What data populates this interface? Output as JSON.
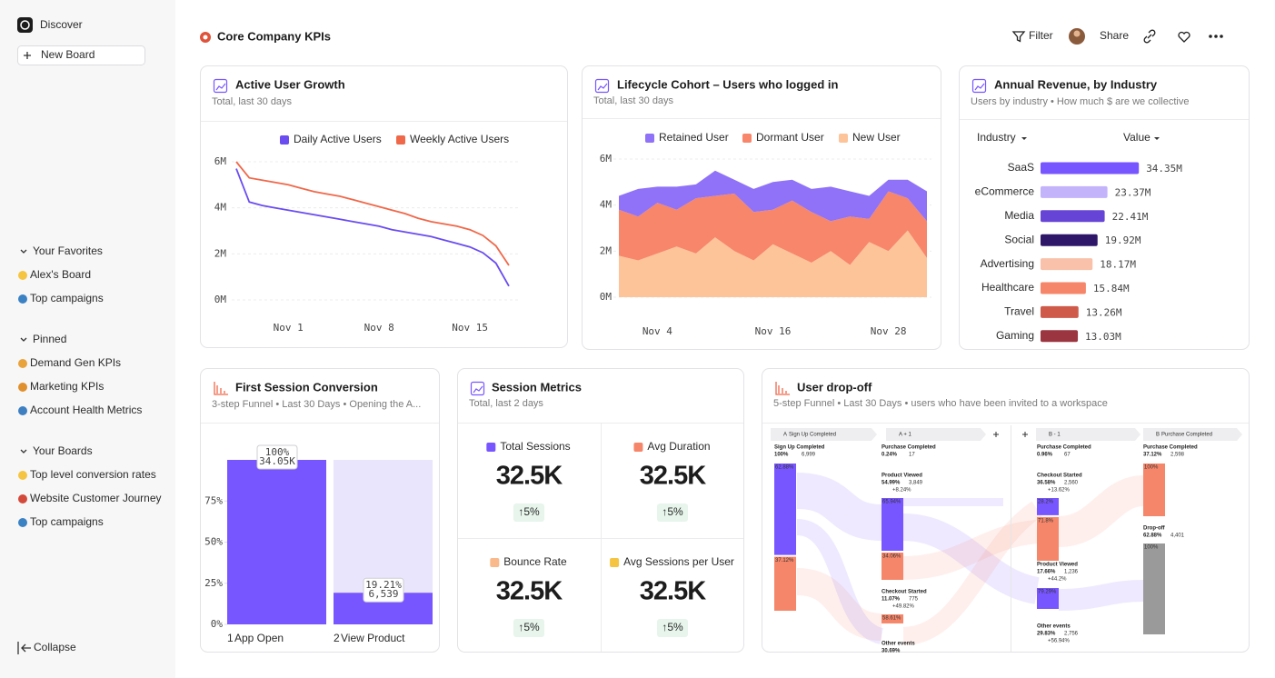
{
  "sidebar": {
    "discover": "Discover",
    "new_board": "New Board",
    "sections": [
      {
        "title": "Your Favorites",
        "items": [
          "Alex's Board",
          "Top campaigns"
        ]
      },
      {
        "title": "Pinned",
        "items": [
          "Demand Gen KPIs",
          "Marketing KPIs",
          "Account Health Metrics"
        ]
      },
      {
        "title": "Your Boards",
        "items": [
          "Top level conversion rates",
          "Website Customer Journey",
          "Top campaigns"
        ]
      }
    ],
    "collapse": "Collapse"
  },
  "header": {
    "title": "Core Company KPIs",
    "filter": "Filter",
    "share": "Share"
  },
  "chart_data": [
    {
      "type": "line",
      "title": "Active User Growth",
      "subtitle": "Total, last 30 days",
      "categories": [
        null,
        null,
        null,
        null,
        "Nov 1",
        null,
        null,
        null,
        null,
        null,
        null,
        "Nov 8",
        null,
        null,
        null,
        null,
        null,
        null,
        "Nov 15",
        null,
        null,
        null
      ],
      "series": [
        {
          "name": "Daily Active Users",
          "color": "#6a4cf0",
          "values": [
            5.7,
            4.25,
            4.1,
            4.0,
            3.9,
            3.8,
            3.7,
            3.6,
            3.5,
            3.4,
            3.3,
            3.2,
            3.05,
            2.95,
            2.85,
            2.75,
            2.6,
            2.45,
            2.3,
            2.05,
            1.6,
            0.6
          ]
        },
        {
          "name": "Weekly Active Users",
          "color": "#f0684a",
          "values": [
            6.0,
            5.3,
            5.2,
            5.1,
            5.0,
            4.85,
            4.7,
            4.6,
            4.5,
            4.35,
            4.2,
            4.05,
            3.9,
            3.75,
            3.55,
            3.4,
            3.3,
            3.2,
            3.05,
            2.8,
            2.35,
            1.5
          ]
        }
      ],
      "ylim": [
        0,
        6
      ],
      "yticks": [
        {
          "value": 0,
          "label": "0M"
        },
        {
          "value": 2,
          "label": "2M"
        },
        {
          "value": 4,
          "label": "4M"
        },
        {
          "value": 6,
          "label": "6M"
        }
      ],
      "grid": true
    },
    {
      "type": "area",
      "title": "Lifecycle Cohort – Users who logged in",
      "subtitle": "Total, last 30 days",
      "categories": [
        null,
        null,
        "Nov 4",
        null,
        null,
        null,
        null,
        null,
        "Nov 16",
        null,
        null,
        null,
        null,
        null,
        "Nov 28",
        null,
        null
      ],
      "series": [
        {
          "name": "Retained User",
          "color": "#8f72f7",
          "values": [
            0.6,
            1.2,
            0.7,
            1.0,
            0.6,
            1.1,
            0.6,
            1.0,
            1.2,
            0.9,
            1.0,
            1.5,
            1.1,
            1.0,
            0.5,
            0.8,
            1.3
          ]
        },
        {
          "name": "Dormant User",
          "color": "#f7866a",
          "values": [
            2.0,
            1.9,
            2.2,
            1.6,
            2.4,
            1.8,
            2.5,
            2.1,
            1.5,
            2.3,
            2.2,
            1.3,
            2.1,
            1.0,
            2.6,
            1.4,
            1.6
          ]
        },
        {
          "name": "New User",
          "color": "#fdc49a",
          "values": [
            1.8,
            1.6,
            1.9,
            2.2,
            1.9,
            2.6,
            2.0,
            1.6,
            2.3,
            1.9,
            1.5,
            2.0,
            1.4,
            2.4,
            2.0,
            2.9,
            1.7
          ]
        }
      ],
      "ylim": [
        0,
        6
      ],
      "yticks": [
        {
          "value": 0,
          "label": "0M"
        },
        {
          "value": 2,
          "label": "2M"
        },
        {
          "value": 4,
          "label": "4M"
        },
        {
          "value": 6,
          "label": "6M"
        }
      ],
      "grid": true
    },
    {
      "type": "hbar",
      "title": "Annual Revenue, by Industry",
      "subtitle": "Users by industry • How much $ are we collective",
      "column_headers": [
        "Industry",
        "Value"
      ],
      "categories": [
        "SaaS",
        "eCommerce",
        "Media",
        "Social",
        "Advertising",
        "Healthcare",
        "Travel",
        "Gaming"
      ],
      "values": [
        34.35,
        23.37,
        22.41,
        19.92,
        18.17,
        15.84,
        13.26,
        13.03
      ],
      "value_labels": [
        "34.35M",
        "23.37M",
        "22.41M",
        "19.92M",
        "18.17M",
        "15.84M",
        "13.26M",
        "13.03M"
      ],
      "colors": [
        "#7856ff",
        "#c3b3fb",
        "#6645d6",
        "#2e1769",
        "#f9c0aa",
        "#f6866a",
        "#cf5a4a",
        "#9b3540"
      ]
    },
    {
      "type": "funnel",
      "title": "First Session Conversion",
      "subtitle": "3-step Funnel • Last 30 Days • Opening the A...",
      "steps": [
        "1",
        "2"
      ],
      "categories": [
        "App Open",
        "View Product"
      ],
      "values": [
        100,
        19.21
      ],
      "value_labels": [
        "100%",
        "19.21%"
      ],
      "count_labels": [
        "34.05K",
        "6,539"
      ],
      "color": "#7856ff",
      "ylim": [
        0,
        100
      ],
      "yticks": [
        {
          "value": 0,
          "label": "0%"
        },
        {
          "value": 25,
          "label": "25%"
        },
        {
          "value": 50,
          "label": "50%"
        },
        {
          "value": 75,
          "label": "75%"
        }
      ]
    }
  ],
  "session_metrics": {
    "title": "Session Metrics",
    "subtitle": "Total, last 2 days",
    "metrics": [
      {
        "name": "Total Sessions",
        "value": "32.5K",
        "change": "↑5%",
        "color": "#7856ff"
      },
      {
        "name": "Avg Duration",
        "value": "32.5K",
        "change": "↑5%",
        "color": "#f6866a"
      },
      {
        "name": "Bounce Rate",
        "value": "32.5K",
        "change": "↑5%",
        "color": "#f9b98a"
      },
      {
        "name": "Avg Sessions per User",
        "value": "32.5K",
        "change": "↑5%",
        "color": "#f5c542"
      }
    ]
  },
  "user_dropoff": {
    "title": "User drop-off",
    "subtitle": "5-step Funnel • Last 30 Days • users who have been invited to a workspace",
    "columns": [
      {
        "step": "A",
        "name": "Sign Up Completed",
        "nodes": [
          {
            "name": "Sign Up Completed",
            "percent": "100%",
            "count": "6,999",
            "bars": [
              {
                "value": 62.88,
                "label": "62.88%",
                "color": "#7856ff"
              },
              {
                "value": 37.12,
                "label": "37.12%",
                "color": "#f6866a"
              }
            ]
          }
        ]
      },
      {
        "step": "A + 1",
        "nodes": [
          {
            "name": "Purchase Completed",
            "percent": "0.24%",
            "count": "17"
          },
          {
            "name": "Product Viewed",
            "percent": "54.99%",
            "count": "3,849",
            "change": "+8.24%",
            "change_color": "#e0523a",
            "bars": [
              {
                "value": 65.94,
                "label": "65.94%",
                "color": "#7856ff"
              },
              {
                "value": 34.06,
                "label": "34.06%",
                "color": "#f6866a"
              }
            ]
          },
          {
            "name": "Checkout Started",
            "percent": "11.07%",
            "count": "775",
            "change": "+49.82%",
            "change_color": "#2e9b5f",
            "bars": [
              {
                "value": 58.61,
                "label": "58.61%",
                "color": "#f6866a"
              }
            ]
          },
          {
            "name": "Other events",
            "percent": "30.69%"
          }
        ]
      },
      {
        "step": "B - 1",
        "nodes": [
          {
            "name": "Purchase Completed",
            "percent": "0.96%",
            "count": "67"
          },
          {
            "name": "Checkout Started",
            "percent": "36.58%",
            "count": "2,560",
            "change": "+13.62%",
            "change_color": "#e0523a",
            "bars": [
              {
                "value": 28.2,
                "label": "28.2%",
                "color": "#7856ff"
              },
              {
                "value": 71.8,
                "label": "71.8%",
                "color": "#f6866a"
              }
            ]
          },
          {
            "name": "Product Viewed",
            "percent": "17.66%",
            "count": "1,236",
            "change": "+44.2%",
            "change_color": "#e0523a",
            "bars": [
              {
                "value": 79.29,
                "label": "79.29%",
                "color": "#7856ff"
              }
            ]
          },
          {
            "name": "Other events",
            "percent": "29.83%",
            "count": "2,756",
            "change": "+56.94%",
            "change_color": "#e0523a"
          }
        ]
      },
      {
        "step": "B",
        "name": "Purchase Completed",
        "nodes": [
          {
            "name": "Purchase Completed",
            "percent": "37.12%",
            "count": "2,598",
            "bars": [
              {
                "value": 100,
                "label": "100%",
                "color": "#f6866a"
              }
            ]
          },
          {
            "name": "Drop-off",
            "percent": "62.88%",
            "count": "4,401",
            "bars": [
              {
                "value": 100,
                "label": "100%",
                "color": "#9a9a9a"
              }
            ]
          }
        ]
      }
    ]
  }
}
